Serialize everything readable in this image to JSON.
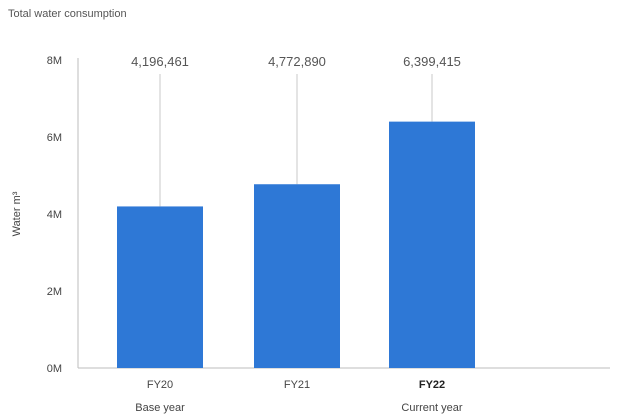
{
  "chart_data": {
    "type": "bar",
    "title": "Total water consumption",
    "ylabel": "Water m³",
    "xlabel": "",
    "categories": [
      "FY20",
      "FY21",
      "FY22"
    ],
    "category_sublabels": [
      "Base year",
      "",
      "Current year"
    ],
    "bold_category": "FY22",
    "values": [
      4196461,
      4772890,
      6399415
    ],
    "value_labels": [
      "4,196,461",
      "4,772,890",
      "6,399,415"
    ],
    "ylim": [
      0,
      8000000
    ],
    "yticks": [
      0,
      2000000,
      4000000,
      6000000,
      8000000
    ],
    "ytick_labels": [
      "0M",
      "2M",
      "4M",
      "6M",
      "8M"
    ],
    "grid": false,
    "bar_color": "#2e78d6"
  }
}
